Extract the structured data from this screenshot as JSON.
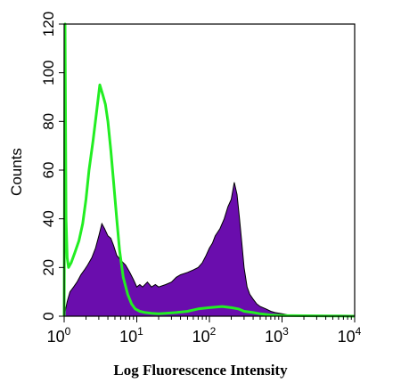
{
  "chart_data": {
    "type": "area",
    "xlabel": "Log Fluorescence Intensity",
    "ylabel": "Counts",
    "xscale": "log",
    "xlim": [
      1,
      10000
    ],
    "ylim": [
      0,
      120
    ],
    "yticks": [
      "0",
      "20",
      "40",
      "60",
      "80",
      "100",
      "120"
    ],
    "xticks": [
      {
        "base": "10",
        "exp": "0"
      },
      {
        "base": "10",
        "exp": "1"
      },
      {
        "base": "10",
        "exp": "2"
      },
      {
        "base": "10",
        "exp": "3"
      },
      {
        "base": "10",
        "exp": "4"
      }
    ],
    "grid": false,
    "legend": "none",
    "series": [
      {
        "style": "filled",
        "fill_color": "#6a0dad",
        "stroke_color": "#000000",
        "x": [
          1.0,
          1.1,
          1.2,
          1.35,
          1.5,
          1.7,
          1.9,
          2.1,
          2.4,
          2.7,
          3.0,
          3.3,
          3.6,
          4.0,
          4.4,
          4.8,
          5.3,
          6.0,
          7.0,
          8.0,
          9.0,
          10,
          11,
          12,
          14,
          16,
          18,
          20,
          25,
          30,
          35,
          40,
          50,
          60,
          70,
          80,
          90,
          100,
          110,
          120,
          140,
          160,
          180,
          200,
          220,
          240,
          260,
          280,
          300,
          330,
          360,
          400,
          450,
          500,
          600,
          700,
          800,
          1000,
          1200,
          1300
        ],
        "y": [
          0,
          6,
          10,
          12,
          14,
          17,
          19,
          21,
          24,
          28,
          33,
          38,
          36,
          33,
          32,
          29,
          25,
          23,
          21,
          18,
          15,
          12,
          13,
          12,
          14,
          12,
          13,
          12,
          13,
          14,
          16,
          17,
          18,
          19,
          20,
          22,
          25,
          28,
          30,
          33,
          36,
          40,
          45,
          48,
          55,
          50,
          40,
          30,
          20,
          12,
          9,
          7,
          5,
          4,
          3,
          2,
          1.5,
          1,
          0.5,
          0
        ]
      },
      {
        "style": "line",
        "stroke_color": "#22ee22",
        "x": [
          1.0,
          1.03,
          1.06,
          1.1,
          1.15,
          1.25,
          1.4,
          1.6,
          1.8,
          2.0,
          2.2,
          2.5,
          2.8,
          3.1,
          3.4,
          3.7,
          4.0,
          4.4,
          4.8,
          5.3,
          5.8,
          6.5,
          7.5,
          8.5,
          9.5,
          11,
          13,
          16,
          20,
          25,
          35,
          50,
          70,
          100,
          150,
          200,
          250,
          300,
          400,
          500,
          700,
          1000,
          2000,
          5000,
          10000
        ],
        "y": [
          0,
          120,
          40,
          24,
          20,
          22,
          26,
          31,
          38,
          48,
          60,
          72,
          84,
          95,
          91,
          87,
          80,
          68,
          55,
          40,
          27,
          16,
          9,
          5,
          3,
          2,
          1.5,
          1.2,
          1,
          1.2,
          1.5,
          2,
          3,
          3.5,
          4,
          3.5,
          3,
          2,
          1.5,
          1,
          0.5,
          0.3,
          0.2,
          0.1,
          0
        ]
      }
    ]
  }
}
